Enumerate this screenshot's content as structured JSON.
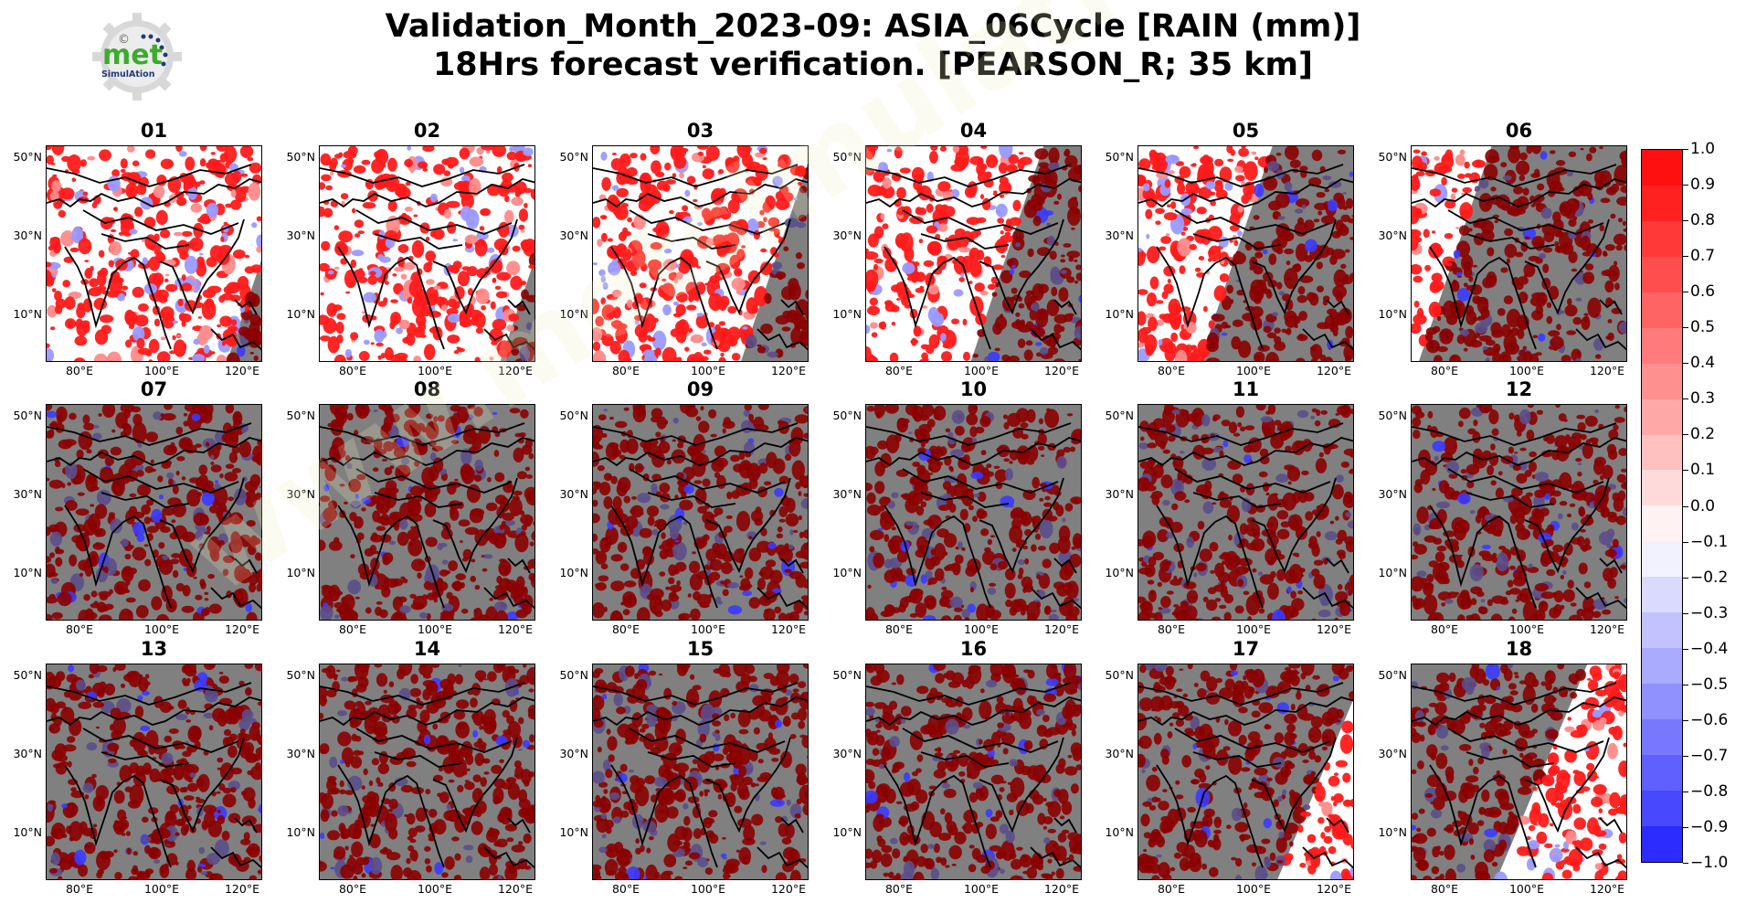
{
  "title": {
    "line1": "Validation_Month_2023-09: ASIA_06Cycle [RAIN (mm)]",
    "line2": "18Hrs forecast verification.  [PEARSON_R; 35 km]"
  },
  "logo": {
    "text": "met",
    "subtext": "SimulAtion",
    "mark": "©"
  },
  "watermark": "www.metsimulation.com",
  "lat_labels": [
    "50°N",
    "30°N",
    "10°N"
  ],
  "lon_labels": [
    "80°E",
    "100°E",
    "120°E"
  ],
  "panels": [
    {
      "label": "01",
      "clear_fraction": 0.0
    },
    {
      "label": "02",
      "clear_fraction": 0.0
    },
    {
      "label": "03",
      "clear_fraction": 0.15
    },
    {
      "label": "04",
      "clear_fraction": 0.35
    },
    {
      "label": "05",
      "clear_fraction": 0.55
    },
    {
      "label": "06",
      "clear_fraction": 0.8
    },
    {
      "label": "07",
      "clear_fraction": 1.0
    },
    {
      "label": "08",
      "clear_fraction": 1.0
    },
    {
      "label": "09",
      "clear_fraction": 1.0
    },
    {
      "label": "10",
      "clear_fraction": 1.0
    },
    {
      "label": "11",
      "clear_fraction": 1.0
    },
    {
      "label": "12",
      "clear_fraction": 1.0
    },
    {
      "label": "13",
      "clear_fraction": 1.0
    },
    {
      "label": "14",
      "clear_fraction": 1.0
    },
    {
      "label": "15",
      "clear_fraction": 1.0
    },
    {
      "label": "16",
      "clear_fraction": 1.0
    },
    {
      "label": "17",
      "clear_fraction": 0.85
    },
    {
      "label": "18",
      "clear_fraction": 0.6
    }
  ],
  "colorbar": {
    "ticks": [
      "1.0",
      "0.9",
      "0.8",
      "0.7",
      "0.6",
      "0.5",
      "0.4",
      "0.3",
      "0.2",
      "0.1",
      "0.0",
      "−0.1",
      "−0.2",
      "−0.3",
      "−0.4",
      "−0.5",
      "−0.6",
      "−0.7",
      "−0.8",
      "−0.9",
      "−1.0"
    ],
    "colors": [
      "#ff1010",
      "#ff2020",
      "#ff3838",
      "#ff4e4e",
      "#ff6464",
      "#ff7a7a",
      "#ff9090",
      "#ffa8a8",
      "#ffc0c0",
      "#ffdada",
      "#fff2f2",
      "#f2f2ff",
      "#dadaff",
      "#c2c2ff",
      "#aaaaff",
      "#9090ff",
      "#7878ff",
      "#6060ff",
      "#4848ff",
      "#2c2cff"
    ]
  },
  "colors": {
    "masked": "#808080",
    "dark_red": "#8b0000",
    "red": "#ff1a1a",
    "blue": "#3a3aff",
    "coast": "#000000"
  }
}
